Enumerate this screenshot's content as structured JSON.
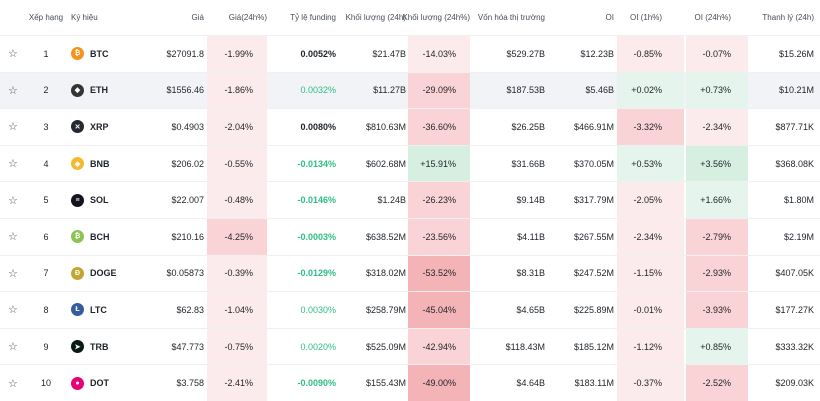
{
  "headers": {
    "rank": "Xếp hạng",
    "symbol": "Ký hiệu",
    "price": "Giá",
    "change24": "Giá(24h%)",
    "funding": "Tỷ lệ funding",
    "volume": "Khối lượng (24h)",
    "volume_change": "Khối lượng (24h%)",
    "mcap": "Vốn hóa thị trường",
    "oi": "OI",
    "oi1h": "OI (1h%)",
    "oi24h": "OI (24h%)",
    "liq": "Thanh lý (24h)"
  },
  "rows": [
    {
      "rank": "1",
      "symbol": "BTC",
      "price": "$27091.8",
      "change24": "-1.99%",
      "funding": "0.0052%",
      "volume": "$21.47B",
      "volume_change": "-14.03%",
      "mcap": "$529.27B",
      "oi": "$12.23B",
      "oi1h": "-0.85%",
      "oi24h": "-0.07%",
      "liq": "$15.26M",
      "icon": "btc-icon",
      "color": "#f7931a",
      "glyph": "₿"
    },
    {
      "rank": "2",
      "symbol": "ETH",
      "price": "$1556.46",
      "change24": "-1.86%",
      "funding": "0.0032%",
      "volume": "$11.27B",
      "volume_change": "-29.09%",
      "mcap": "$187.53B",
      "oi": "$5.46B",
      "oi1h": "+0.02%",
      "oi24h": "+0.73%",
      "liq": "$10.21M",
      "icon": "eth-icon",
      "color": "#343434",
      "glyph": "◆"
    },
    {
      "rank": "3",
      "symbol": "XRP",
      "price": "$0.4903",
      "change24": "-2.04%",
      "funding": "0.0080%",
      "volume": "$810.63M",
      "volume_change": "-36.60%",
      "mcap": "$26.25B",
      "oi": "$466.91M",
      "oi1h": "-3.32%",
      "oi24h": "-2.34%",
      "liq": "$877.71K",
      "icon": "xrp-icon",
      "color": "#23292f",
      "glyph": "✕"
    },
    {
      "rank": "4",
      "symbol": "BNB",
      "price": "$206.02",
      "change24": "-0.55%",
      "funding": "-0.0134%",
      "volume": "$602.68M",
      "volume_change": "+15.91%",
      "mcap": "$31.66B",
      "oi": "$370.05M",
      "oi1h": "+0.53%",
      "oi24h": "+3.56%",
      "liq": "$368.08K",
      "icon": "bnb-icon",
      "color": "#f3ba2f",
      "glyph": "◈"
    },
    {
      "rank": "5",
      "symbol": "SOL",
      "price": "$22.007",
      "change24": "-0.48%",
      "funding": "-0.0146%",
      "volume": "$1.24B",
      "volume_change": "-26.23%",
      "mcap": "$9.14B",
      "oi": "$317.79M",
      "oi1h": "-2.05%",
      "oi24h": "+1.66%",
      "liq": "$1.80M",
      "icon": "sol-icon",
      "color": "#14141f",
      "glyph": "≡"
    },
    {
      "rank": "6",
      "symbol": "BCH",
      "price": "$210.16",
      "change24": "-4.25%",
      "funding": "-0.0003%",
      "volume": "$638.52M",
      "volume_change": "-23.56%",
      "mcap": "$4.11B",
      "oi": "$267.55M",
      "oi1h": "-2.34%",
      "oi24h": "-2.79%",
      "liq": "$2.19M",
      "icon": "bch-icon",
      "color": "#8dc351",
      "glyph": "₿"
    },
    {
      "rank": "7",
      "symbol": "DOGE",
      "price": "$0.05873",
      "change24": "-0.39%",
      "funding": "-0.0129%",
      "volume": "$318.02M",
      "volume_change": "-53.52%",
      "mcap": "$8.31B",
      "oi": "$247.52M",
      "oi1h": "-1.15%",
      "oi24h": "-2.93%",
      "liq": "$407.05K",
      "icon": "doge-icon",
      "color": "#c2a633",
      "glyph": "Ð"
    },
    {
      "rank": "8",
      "symbol": "LTC",
      "price": "$62.83",
      "change24": "-1.04%",
      "funding": "0.0030%",
      "volume": "$258.79M",
      "volume_change": "-45.04%",
      "mcap": "$4.65B",
      "oi": "$225.89M",
      "oi1h": "-0.01%",
      "oi24h": "-3.93%",
      "liq": "$177.27K",
      "icon": "ltc-icon",
      "color": "#345d9d",
      "glyph": "Ł"
    },
    {
      "rank": "9",
      "symbol": "TRB",
      "price": "$47.773",
      "change24": "-0.75%",
      "funding": "0.0020%",
      "volume": "$525.09M",
      "volume_change": "-42.94%",
      "mcap": "$118.43M",
      "oi": "$185.12M",
      "oi1h": "-1.12%",
      "oi24h": "+0.85%",
      "liq": "$333.32K",
      "icon": "trb-icon",
      "color": "#0c1a15",
      "glyph": "➤"
    },
    {
      "rank": "10",
      "symbol": "DOT",
      "price": "$3.758",
      "change24": "-2.41%",
      "funding": "-0.0090%",
      "volume": "$155.43M",
      "volume_change": "-49.00%",
      "mcap": "$4.64B",
      "oi": "$183.11M",
      "oi1h": "-0.37%",
      "oi24h": "-2.52%",
      "liq": "$209.03K",
      "icon": "dot-icon",
      "color": "#e6007a",
      "glyph": "●"
    }
  ]
}
